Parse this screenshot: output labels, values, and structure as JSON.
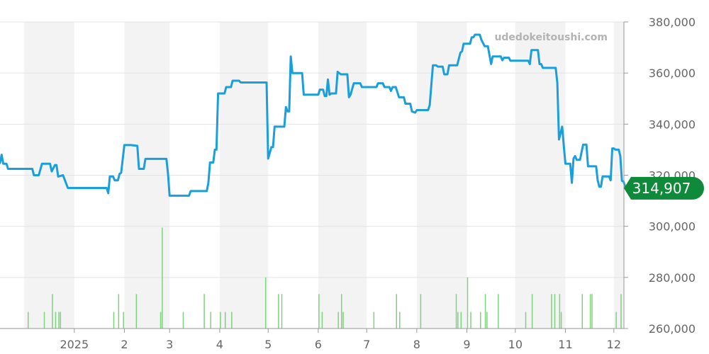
{
  "watermark": "udedokeitoushi.com",
  "current_price_label": "314,907",
  "colors": {
    "price_line": "#1a9fdb",
    "volume_bar": "#7fd07f",
    "band": "#f3f3f3",
    "grid": "#e3e3e3",
    "badge": "#0f8a3a"
  },
  "chart_data": {
    "type": "line",
    "title": "",
    "xlabel": "",
    "ylabel": "",
    "ylim": [
      260000,
      380000
    ],
    "y_ticks": [
      260000,
      280000,
      300000,
      320000,
      340000,
      360000,
      380000
    ],
    "y_tick_labels": [
      "260,000",
      "280,000",
      "300,000",
      "320,000",
      "340,000",
      "360,000",
      "380,000"
    ],
    "x_range": [
      "2024-11-16",
      "2025-12-23"
    ],
    "x_ticks": [
      {
        "date": "2025-01-01",
        "label": "2025"
      },
      {
        "date": "2025-02-01",
        "label": "2"
      },
      {
        "date": "2025-03-01",
        "label": "3"
      },
      {
        "date": "2025-04-01",
        "label": "4"
      },
      {
        "date": "2025-05-01",
        "label": "5"
      },
      {
        "date": "2025-06-01",
        "label": "6"
      },
      {
        "date": "2025-07-01",
        "label": "7"
      },
      {
        "date": "2025-08-01",
        "label": "8"
      },
      {
        "date": "2025-09-01",
        "label": "9"
      },
      {
        "date": "2025-10-01",
        "label": "10"
      },
      {
        "date": "2025-11-01",
        "label": "11"
      },
      {
        "date": "2025-12-01",
        "label": "12"
      }
    ],
    "shaded_months": [
      "2024-12",
      "2025-02",
      "2025-04",
      "2025-06",
      "2025-08",
      "2025-10",
      "2025-12"
    ],
    "grid": true,
    "series": [
      {
        "points": [
          [
            "2024-11-16",
            324800
          ],
          [
            "2024-11-17",
            328000
          ],
          [
            "2024-11-18",
            324500
          ],
          [
            "2024-11-20",
            324500
          ],
          [
            "2024-11-21",
            322500
          ],
          [
            "2024-12-06",
            322500
          ],
          [
            "2024-12-07",
            320000
          ],
          [
            "2024-12-10",
            320000
          ],
          [
            "2024-12-12",
            324500
          ],
          [
            "2024-12-17",
            324500
          ],
          [
            "2024-12-18",
            321500
          ],
          [
            "2024-12-20",
            324000
          ],
          [
            "2024-12-21",
            324000
          ],
          [
            "2024-12-22",
            319500
          ],
          [
            "2024-12-25",
            320000
          ],
          [
            "2024-12-28",
            315000
          ],
          [
            "2025-01-21",
            315000
          ],
          [
            "2025-01-22",
            313000
          ],
          [
            "2025-01-23",
            319500
          ],
          [
            "2025-01-25",
            319500
          ],
          [
            "2025-01-26",
            318000
          ],
          [
            "2025-01-28",
            318000
          ],
          [
            "2025-01-29",
            320500
          ],
          [
            "2025-01-30",
            321000
          ],
          [
            "2025-02-01",
            331800
          ],
          [
            "2025-02-05",
            331800
          ],
          [
            "2025-02-09",
            331500
          ],
          [
            "2025-02-10",
            322500
          ],
          [
            "2025-02-13",
            322500
          ],
          [
            "2025-02-14",
            326400
          ],
          [
            "2025-02-27",
            326400
          ],
          [
            "2025-02-28",
            320500
          ],
          [
            "2025-03-01",
            312000
          ],
          [
            "2025-03-13",
            312000
          ],
          [
            "2025-03-14",
            313800
          ],
          [
            "2025-03-24",
            313800
          ],
          [
            "2025-03-25",
            317000
          ],
          [
            "2025-03-26",
            325000
          ],
          [
            "2025-03-28",
            325000
          ],
          [
            "2025-03-29",
            330000
          ],
          [
            "2025-03-30",
            330000
          ],
          [
            "2025-03-31",
            352000
          ],
          [
            "2025-04-04",
            352000
          ],
          [
            "2025-04-05",
            354500
          ],
          [
            "2025-04-08",
            354500
          ],
          [
            "2025-04-09",
            357000
          ],
          [
            "2025-04-13",
            357000
          ],
          [
            "2025-04-14",
            356300
          ],
          [
            "2025-04-29",
            356300
          ],
          [
            "2025-04-30",
            356300
          ],
          [
            "2025-05-01",
            326500
          ],
          [
            "2025-05-03",
            331000
          ],
          [
            "2025-05-04",
            331000
          ],
          [
            "2025-05-05",
            339000
          ],
          [
            "2025-05-11",
            339000
          ],
          [
            "2025-05-12",
            346700
          ],
          [
            "2025-05-13",
            345000
          ],
          [
            "2025-05-14",
            345000
          ],
          [
            "2025-05-15",
            366500
          ],
          [
            "2025-05-16",
            360000
          ],
          [
            "2025-05-22",
            360000
          ],
          [
            "2025-05-23",
            351500
          ],
          [
            "2025-06-01",
            351500
          ],
          [
            "2025-06-02",
            353500
          ],
          [
            "2025-06-04",
            353500
          ],
          [
            "2025-06-05",
            351000
          ],
          [
            "2025-06-06",
            351000
          ],
          [
            "2025-06-07",
            357500
          ],
          [
            "2025-06-08",
            351500
          ],
          [
            "2025-06-09",
            352000
          ],
          [
            "2025-06-12",
            352000
          ],
          [
            "2025-06-13",
            360500
          ],
          [
            "2025-06-15",
            359500
          ],
          [
            "2025-06-19",
            359500
          ],
          [
            "2025-06-20",
            350500
          ],
          [
            "2025-06-21",
            351500
          ],
          [
            "2025-06-23",
            356000
          ],
          [
            "2025-06-27",
            356000
          ],
          [
            "2025-06-28",
            354500
          ],
          [
            "2025-07-07",
            354500
          ],
          [
            "2025-07-08",
            356000
          ],
          [
            "2025-07-11",
            356000
          ],
          [
            "2025-07-12",
            354500
          ],
          [
            "2025-07-15",
            354500
          ],
          [
            "2025-07-16",
            353000
          ],
          [
            "2025-07-17",
            354500
          ],
          [
            "2025-07-19",
            354500
          ],
          [
            "2025-07-21",
            350500
          ],
          [
            "2025-07-24",
            350500
          ],
          [
            "2025-07-25",
            348000
          ],
          [
            "2025-07-28",
            348000
          ],
          [
            "2025-07-29",
            345000
          ],
          [
            "2025-07-31",
            344500
          ],
          [
            "2025-08-01",
            345500
          ],
          [
            "2025-08-08",
            345500
          ],
          [
            "2025-08-09",
            347500
          ],
          [
            "2025-08-11",
            363000
          ],
          [
            "2025-08-13",
            363000
          ],
          [
            "2025-08-14",
            362500
          ],
          [
            "2025-08-17",
            362500
          ],
          [
            "2025-08-18",
            359500
          ],
          [
            "2025-08-20",
            359500
          ],
          [
            "2025-08-21",
            363000
          ],
          [
            "2025-08-26",
            363000
          ],
          [
            "2025-08-28",
            368000
          ],
          [
            "2025-08-29",
            368500
          ],
          [
            "2025-08-30",
            371500
          ],
          [
            "2025-09-03",
            371500
          ],
          [
            "2025-09-04",
            374000
          ],
          [
            "2025-09-05",
            374000
          ],
          [
            "2025-09-06",
            375000
          ],
          [
            "2025-09-09",
            375000
          ],
          [
            "2025-09-10",
            373000
          ],
          [
            "2025-09-12",
            370500
          ],
          [
            "2025-09-14",
            370500
          ],
          [
            "2025-09-16",
            363500
          ],
          [
            "2025-09-17",
            366500
          ],
          [
            "2025-09-22",
            366500
          ],
          [
            "2025-09-23",
            365000
          ],
          [
            "2025-09-24",
            366000
          ],
          [
            "2025-09-27",
            366000
          ],
          [
            "2025-09-28",
            364800
          ],
          [
            "2025-10-09",
            364800
          ],
          [
            "2025-10-10",
            363500
          ],
          [
            "2025-10-11",
            369000
          ],
          [
            "2025-10-15",
            369000
          ],
          [
            "2025-10-16",
            363500
          ],
          [
            "2025-10-17",
            363500
          ],
          [
            "2025-10-18",
            362000
          ],
          [
            "2025-10-26",
            362000
          ],
          [
            "2025-10-27",
            356000
          ],
          [
            "2025-10-28",
            334000
          ],
          [
            "2025-10-30",
            339000
          ],
          [
            "2025-10-31",
            331500
          ],
          [
            "2025-11-01",
            324500
          ],
          [
            "2025-11-04",
            324500
          ],
          [
            "2025-11-05",
            317000
          ],
          [
            "2025-11-06",
            326500
          ],
          [
            "2025-11-07",
            327500
          ],
          [
            "2025-11-08",
            326000
          ],
          [
            "2025-11-10",
            326000
          ],
          [
            "2025-11-12",
            332000
          ],
          [
            "2025-11-14",
            332000
          ],
          [
            "2025-11-15",
            323500
          ],
          [
            "2025-11-20",
            323500
          ],
          [
            "2025-11-21",
            318000
          ],
          [
            "2025-11-22",
            315500
          ],
          [
            "2025-11-23",
            315500
          ],
          [
            "2025-11-24",
            319500
          ],
          [
            "2025-11-28",
            319500
          ],
          [
            "2025-11-29",
            318000
          ],
          [
            "2025-11-30",
            330500
          ],
          [
            "2025-12-01",
            330500
          ],
          [
            "2025-12-02",
            330000
          ],
          [
            "2025-12-04",
            330000
          ],
          [
            "2025-12-05",
            327500
          ],
          [
            "2025-12-06",
            317800
          ],
          [
            "2025-12-07",
            317500
          ],
          [
            "2025-12-08",
            315500
          ],
          [
            "2025-12-09",
            314907
          ]
        ]
      }
    ],
    "volume": {
      "ylim": [
        260000,
        300000
      ],
      "bars": [
        [
          "2024-12-03",
          266500
        ],
        [
          "2024-12-13",
          266500
        ],
        [
          "2024-12-18",
          273500
        ],
        [
          "2024-12-20",
          266500
        ],
        [
          "2024-12-22",
          266500
        ],
        [
          "2024-12-23",
          266500
        ],
        [
          "2025-01-25",
          266500
        ],
        [
          "2025-01-28",
          273500
        ],
        [
          "2025-01-31",
          266500
        ],
        [
          "2025-02-08",
          273500
        ],
        [
          "2025-02-23",
          266500
        ],
        [
          "2025-02-24",
          299500
        ],
        [
          "2025-03-09",
          266500
        ],
        [
          "2025-03-22",
          273500
        ],
        [
          "2025-03-26",
          266500
        ],
        [
          "2025-04-01",
          266500
        ],
        [
          "2025-04-04",
          266500
        ],
        [
          "2025-04-08",
          266500
        ],
        [
          "2025-04-29",
          280000
        ],
        [
          "2025-05-07",
          273500
        ],
        [
          "2025-05-09",
          273500
        ],
        [
          "2025-06-01",
          273500
        ],
        [
          "2025-06-03",
          266500
        ],
        [
          "2025-06-13",
          266500
        ],
        [
          "2025-06-15",
          273500
        ],
        [
          "2025-06-16",
          266500
        ],
        [
          "2025-07-05",
          266500
        ],
        [
          "2025-07-19",
          273500
        ],
        [
          "2025-07-21",
          266500
        ],
        [
          "2025-08-03",
          273500
        ],
        [
          "2025-08-25",
          273500
        ],
        [
          "2025-08-26",
          266500
        ],
        [
          "2025-08-28",
          266500
        ],
        [
          "2025-09-01",
          280000
        ],
        [
          "2025-09-03",
          266500
        ],
        [
          "2025-09-09",
          266500
        ],
        [
          "2025-09-12",
          273500
        ],
        [
          "2025-09-13",
          266500
        ],
        [
          "2025-09-20",
          273500
        ],
        [
          "2025-10-07",
          266500
        ],
        [
          "2025-10-11",
          273500
        ],
        [
          "2025-10-23",
          273500
        ],
        [
          "2025-10-25",
          273500
        ],
        [
          "2025-10-28",
          273500
        ],
        [
          "2025-10-29",
          266500
        ],
        [
          "2025-11-11",
          273500
        ],
        [
          "2025-11-16",
          273500
        ],
        [
          "2025-11-17",
          273500
        ],
        [
          "2025-12-02",
          266500
        ],
        [
          "2025-12-05",
          273500
        ]
      ]
    }
  }
}
